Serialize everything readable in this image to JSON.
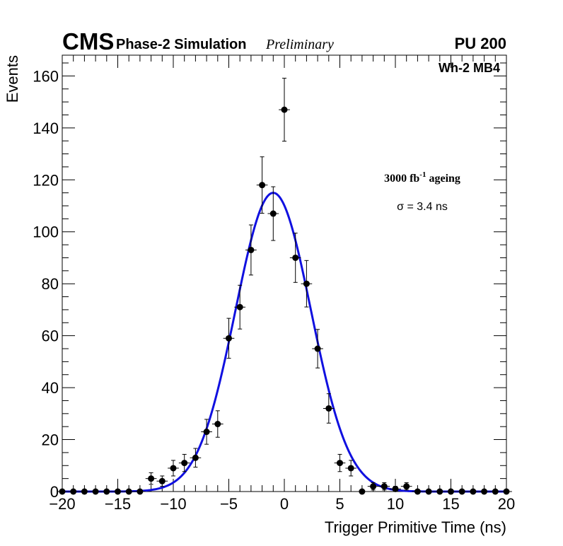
{
  "header": {
    "experiment": "CMS",
    "subtitle": "Phase-2 Simulation",
    "status": "Preliminary",
    "pileup": "PU 200"
  },
  "colors": {
    "fit": "#1010e0",
    "points": "#000000",
    "axis": "#000000"
  },
  "chart_data": {
    "type": "scatter",
    "title": "",
    "xlabel": "Trigger Primitive Time (ns)",
    "ylabel": "Events",
    "xlim": [
      -20,
      20
    ],
    "ylim": [
      0,
      168
    ],
    "x_ticks": [
      -20,
      -15,
      -10,
      -5,
      0,
      5,
      10,
      15,
      20
    ],
    "x_tick_labels": [
      "−20",
      "−15",
      "−10",
      "−5",
      "0",
      "5",
      "10",
      "15",
      "20"
    ],
    "y_ticks": [
      0,
      20,
      40,
      60,
      80,
      100,
      120,
      140,
      160
    ],
    "y_tick_labels": [
      "0",
      "20",
      "40",
      "60",
      "80",
      "100",
      "120",
      "140",
      "160"
    ],
    "region_label": "Wh-2 MB4",
    "annotation": {
      "prefix": "3000 fb",
      "superscript": "-1",
      "suffix": " ageing"
    },
    "sigma_label": "σ = 3.4 ns",
    "bin_half_width": 0.5,
    "series": [
      {
        "name": "data",
        "x": [
          -20,
          -19,
          -18,
          -17,
          -16,
          -15,
          -14,
          -13,
          -12,
          -11,
          -10,
          -9,
          -8,
          -7,
          -6,
          -5,
          -4,
          -3,
          -2,
          -1,
          0,
          1,
          2,
          3,
          4,
          5,
          6,
          7,
          8,
          9,
          10,
          11,
          12,
          13,
          14,
          15,
          16,
          17,
          18,
          19,
          20
        ],
        "y": [
          0,
          0,
          0,
          0,
          0,
          0,
          0,
          0,
          5,
          4,
          9,
          11,
          13,
          23,
          26,
          59,
          71,
          93,
          118,
          107,
          147,
          90,
          80,
          55,
          32,
          11,
          9,
          0,
          2,
          2,
          1,
          2,
          0,
          0,
          0,
          0,
          0,
          0,
          0,
          0,
          0
        ]
      },
      {
        "name": "gaussian fit",
        "type": "line",
        "amplitude": 115,
        "mean": -1.0,
        "sigma": 3.4
      }
    ]
  }
}
